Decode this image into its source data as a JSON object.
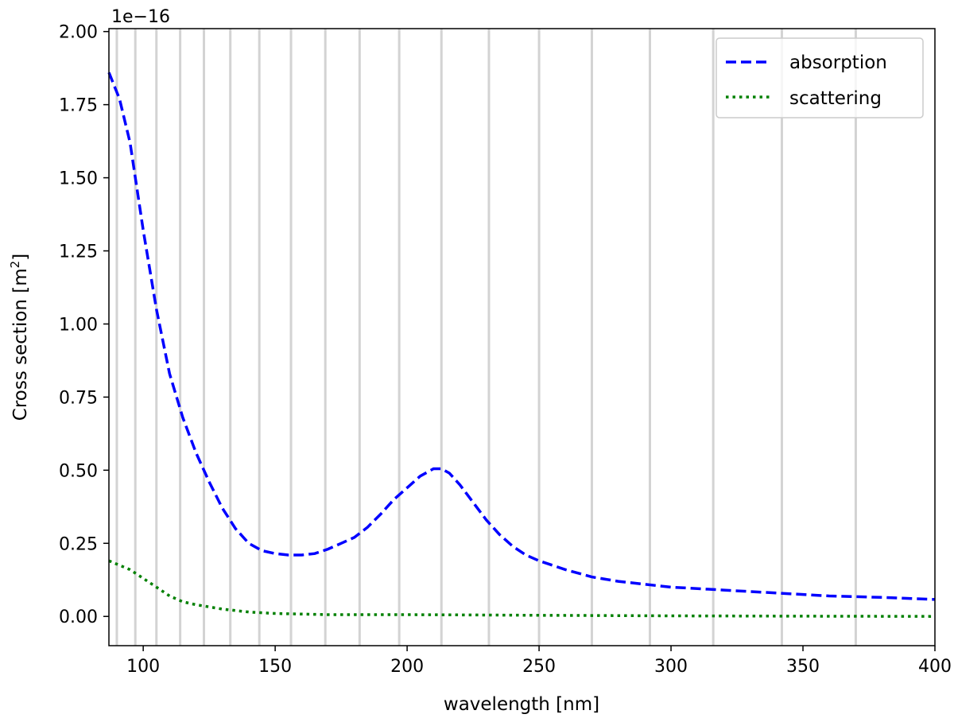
{
  "chart_data": {
    "type": "line",
    "xlabel": "wavelength [nm]",
    "ylabel_main": "Cross section [m",
    "ylabel_sup": "2",
    "ylabel_end": "]",
    "offset_text": "1e−16",
    "xlim": [
      87,
      400
    ],
    "ylim": [
      -0.1,
      2.01
    ],
    "xticks": [
      100,
      150,
      200,
      250,
      300,
      350,
      400
    ],
    "xtick_labels": [
      "100",
      "150",
      "200",
      "250",
      "300",
      "350",
      "400"
    ],
    "yticks": [
      0.0,
      0.25,
      0.5,
      0.75,
      1.0,
      1.25,
      1.5,
      1.75,
      2.0
    ],
    "ytick_labels": [
      "0.00",
      "0.25",
      "0.50",
      "0.75",
      "1.00",
      "1.25",
      "1.50",
      "1.75",
      "2.00"
    ],
    "vertical_lines": [
      90,
      97,
      105,
      114,
      123,
      133,
      144,
      156,
      169,
      182,
      197,
      213,
      231,
      250,
      270,
      292,
      316,
      342,
      370
    ],
    "legend_position": "top-right",
    "series": [
      {
        "name": "absorption",
        "color": "#0000ff",
        "style": "dashed",
        "x": [
          87,
          91,
          95,
          100,
          105,
          110,
          115,
          120,
          125,
          130,
          135,
          140,
          145,
          150,
          155,
          160,
          165,
          170,
          175,
          180,
          185,
          190,
          195,
          200,
          205,
          210,
          213,
          216,
          220,
          225,
          230,
          235,
          240,
          245,
          250,
          260,
          270,
          280,
          290,
          300,
          320,
          340,
          360,
          380,
          400
        ],
        "y": [
          1.86,
          1.77,
          1.62,
          1.32,
          1.05,
          0.83,
          0.68,
          0.56,
          0.46,
          0.37,
          0.3,
          0.25,
          0.225,
          0.215,
          0.21,
          0.21,
          0.215,
          0.23,
          0.25,
          0.27,
          0.305,
          0.35,
          0.4,
          0.44,
          0.48,
          0.505,
          0.505,
          0.49,
          0.45,
          0.39,
          0.33,
          0.28,
          0.24,
          0.21,
          0.19,
          0.16,
          0.135,
          0.12,
          0.11,
          0.1,
          0.09,
          0.08,
          0.07,
          0.065,
          0.058
        ]
      },
      {
        "name": "scattering",
        "color": "#008000",
        "style": "dotted",
        "x": [
          87,
          95,
          100,
          105,
          110,
          115,
          120,
          130,
          140,
          150,
          170,
          200,
          250,
          300,
          350,
          400
        ],
        "y": [
          0.19,
          0.16,
          0.13,
          0.1,
          0.07,
          0.05,
          0.04,
          0.025,
          0.015,
          0.01,
          0.006,
          0.006,
          0.004,
          0.002,
          0.001,
          0.0
        ]
      }
    ]
  }
}
